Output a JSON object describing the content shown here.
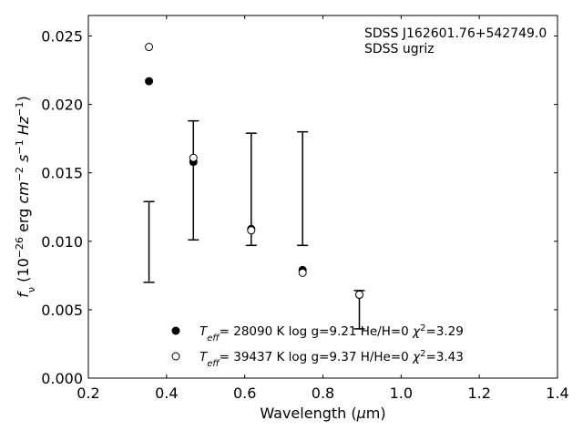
{
  "chart_data": {
    "type": "scatter",
    "title": "",
    "xlabel": "Wavelength (μm)",
    "ylabel": "f_ν (10⁻²⁶ erg cm⁻² s⁻¹ Hz⁻¹)",
    "xlim": [
      0.2,
      1.4
    ],
    "ylim": [
      0.0,
      0.0265
    ],
    "x_ticks": [
      0.2,
      0.4,
      0.6,
      0.8,
      1.0,
      1.2,
      1.4
    ],
    "x_tick_labels": [
      "0.2",
      "0.4",
      "0.6",
      "0.8",
      "1.0",
      "1.2",
      "1.4"
    ],
    "y_ticks": [
      0.0,
      0.005,
      0.01,
      0.015,
      0.02,
      0.025
    ],
    "y_tick_labels": [
      "0.000",
      "0.005",
      "0.010",
      "0.015",
      "0.020",
      "0.025"
    ],
    "grid": false,
    "annotation": [
      "SDSS J162601.76+542749.0",
      "SDSS ugriz"
    ],
    "observed": {
      "x": [
        0.3551,
        0.4686,
        0.6166,
        0.748,
        0.8932
      ],
      "ylow": [
        0.007,
        0.0101,
        0.0097,
        0.0097,
        0.0036
      ],
      "yhigh": [
        0.0129,
        0.0188,
        0.0179,
        0.018,
        0.0064
      ]
    },
    "series": [
      {
        "name": "Teff= 28090 K  log g=9.21  He/H=0  χ²=3.29",
        "marker": "filled-circle",
        "x": [
          0.3551,
          0.4686,
          0.6166,
          0.748,
          0.8932
        ],
        "y": [
          0.0217,
          0.0158,
          0.0109,
          0.0079,
          0.0061
        ]
      },
      {
        "name": "Teff= 39437 K  log g=9.37  H/He=0  χ²=3.43",
        "marker": "open-circle",
        "x": [
          0.3551,
          0.4686,
          0.6166,
          0.748,
          0.8932
        ],
        "y": [
          0.0242,
          0.0161,
          0.0108,
          0.0077,
          0.0061
        ]
      }
    ],
    "legend": {
      "placement": "lower-center",
      "entries": [
        {
          "teff": "28090 K",
          "rest": "log g=9.21  He/H=0",
          "chi2": "3.29"
        },
        {
          "teff": "39437 K",
          "rest": "log g=9.37  H/He=0",
          "chi2": "3.43"
        }
      ]
    },
    "colors": {
      "marker": "#000000",
      "axes": "#000000",
      "background": "#ffffff"
    }
  }
}
